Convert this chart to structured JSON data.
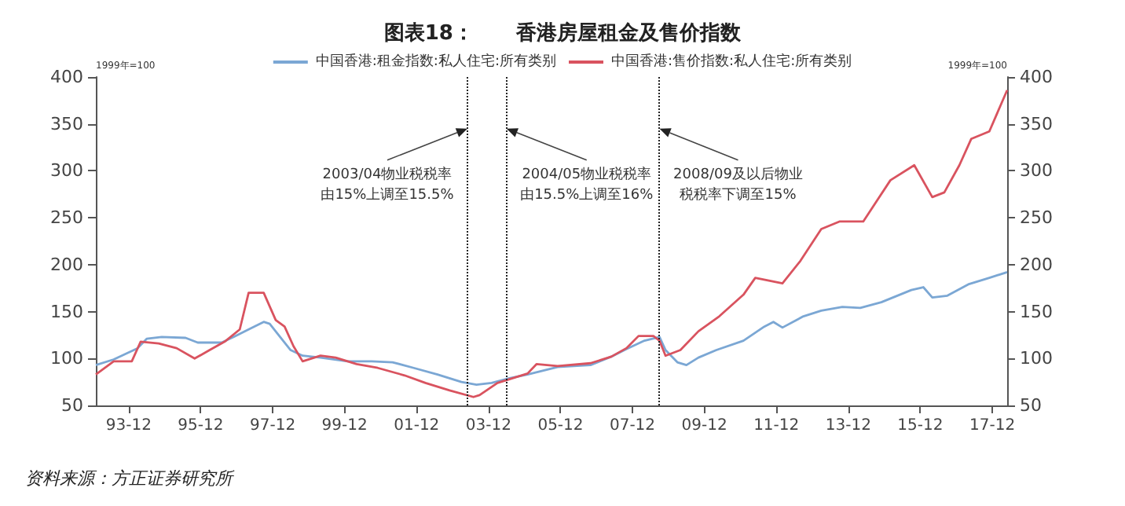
{
  "chart_data": {
    "type": "line",
    "title": "图表18：      香港房屋租金及售价指数",
    "ylabel": "1999年=100",
    "y2label": "1999年=100",
    "annotations": [
      {
        "text": "2003/04物业税税率由15%上调至15.5%",
        "x": "2003-05",
        "y": 345
      },
      {
        "text": "2004/05物业税税率由15.5%上调至16%",
        "x": "2004-06",
        "y": 345
      },
      {
        "text": "2008/09及以后物业税税率下调至15%",
        "x": "2008-09",
        "y": 345
      },
      "资料来源：方正证券研究所"
    ],
    "xlim": [
      "1993-01",
      "2018-05"
    ],
    "xticks": [
      {
        "value": "1993-12",
        "label": "93-12"
      },
      {
        "value": "1995-12",
        "label": "95-12"
      },
      {
        "value": "1997-12",
        "label": "97-12"
      },
      {
        "value": "1999-12",
        "label": "99-12"
      },
      {
        "value": "2001-12",
        "label": "01-12"
      },
      {
        "value": "2003-12",
        "label": "03-12"
      },
      {
        "value": "2005-12",
        "label": "05-12"
      },
      {
        "value": "2007-12",
        "label": "07-12"
      },
      {
        "value": "2009-12",
        "label": "09-12"
      },
      {
        "value": "2011-12",
        "label": "11-12"
      },
      {
        "value": "2013-12",
        "label": "13-12"
      },
      {
        "value": "2015-12",
        "label": "15-12"
      },
      {
        "value": "2017-12",
        "label": "17-12"
      }
    ],
    "ylim": [
      50,
      400
    ],
    "yticks": [
      50,
      100,
      150,
      200,
      250,
      300,
      350,
      400
    ],
    "y2lim": [
      50,
      400
    ],
    "y2ticks": [
      50,
      100,
      150,
      200,
      250,
      300,
      350,
      400
    ],
    "legend": "top",
    "grid": false,
    "ref_lines": [
      {
        "axis": "x",
        "value": "2003-05",
        "line_style": "dotted",
        "color": "#222222"
      },
      {
        "axis": "x",
        "value": "2004-06",
        "line_style": "dotted",
        "color": "#222222"
      },
      {
        "axis": "x",
        "value": "2008-09",
        "line_style": "dotted",
        "color": "#222222"
      }
    ],
    "series": [
      {
        "name": "中国香港:租金指数:私人住宅:所有类别",
        "color": "#7ba7d4",
        "x": [
          "1993-01",
          "1993-07",
          "1994-03",
          "1994-06",
          "1994-11",
          "1995-07",
          "1995-11",
          "1996-07",
          "1996-11",
          "1997-04",
          "1997-09",
          "1997-11",
          "1998-03",
          "1998-06",
          "1998-10",
          "1999-04",
          "2000-01",
          "2000-09",
          "2001-04",
          "2001-11",
          "2002-07",
          "2003-03",
          "2003-08",
          "2004-01",
          "2004-07",
          "2005-01",
          "2005-11",
          "2006-10",
          "2007-05",
          "2007-10",
          "2008-04",
          "2008-09",
          "2008-11",
          "2009-03",
          "2009-06",
          "2009-10",
          "2010-04",
          "2011-01",
          "2011-08",
          "2011-11",
          "2012-02",
          "2012-09",
          "2013-03",
          "2013-10",
          "2014-04",
          "2014-11",
          "2015-09",
          "2016-01",
          "2016-04",
          "2016-09",
          "2017-04",
          "2017-11",
          "2018-05"
        ],
        "values": [
          93,
          99,
          111,
          121,
          123,
          122,
          117,
          117,
          123,
          131,
          139,
          137,
          121,
          109,
          103,
          101,
          97,
          97,
          96,
          90,
          83,
          75,
          72,
          74,
          79,
          83,
          91,
          93,
          102,
          110,
          119,
          123,
          109,
          96,
          93,
          101,
          109,
          119,
          134,
          139,
          133,
          145,
          151,
          155,
          154,
          160,
          173,
          176,
          165,
          167,
          179,
          186,
          192
        ]
      },
      {
        "name": "中国香港:售价指数:私人住宅:所有类别",
        "color": "#d9535f",
        "x": [
          "1993-01",
          "1993-07",
          "1994-01",
          "1994-04",
          "1994-10",
          "1995-04",
          "1995-10",
          "1996-03",
          "1996-08",
          "1997-01",
          "1997-04",
          "1997-09",
          "1998-01",
          "1998-04",
          "1998-07",
          "1998-10",
          "1999-04",
          "1999-09",
          "2000-04",
          "2000-11",
          "2001-08",
          "2002-03",
          "2002-11",
          "2003-07",
          "2003-09",
          "2004-03",
          "2004-07",
          "2005-01",
          "2005-04",
          "2005-11",
          "2006-10",
          "2007-05",
          "2007-10",
          "2008-02",
          "2008-07",
          "2008-09",
          "2008-11",
          "2009-04",
          "2009-10",
          "2010-05",
          "2011-01",
          "2011-05",
          "2012-02",
          "2012-08",
          "2013-03",
          "2013-09",
          "2014-05",
          "2015-02",
          "2015-10",
          "2016-04",
          "2016-08",
          "2017-01",
          "2017-05",
          "2017-11",
          "2018-05"
        ],
        "values": [
          83,
          97,
          97,
          118,
          116,
          111,
          100,
          109,
          118,
          131,
          170,
          170,
          141,
          134,
          113,
          97,
          103,
          101,
          94,
          90,
          82,
          74,
          66,
          59,
          61,
          74,
          78,
          84,
          94,
          92,
          95,
          102,
          111,
          124,
          124,
          119,
          103,
          109,
          129,
          145,
          168,
          186,
          180,
          204,
          238,
          246,
          246,
          290,
          306,
          272,
          277,
          306,
          334,
          342,
          386
        ]
      }
    ]
  }
}
